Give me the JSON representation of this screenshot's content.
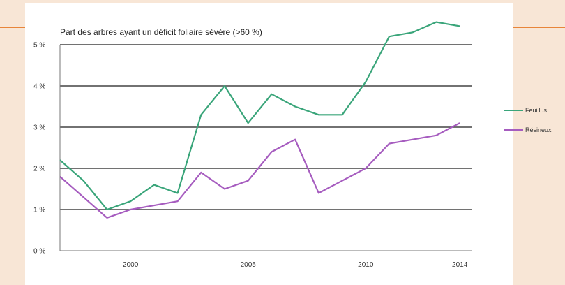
{
  "chart_data": {
    "type": "line",
    "title": "Part des arbres ayant un déficit foliaire sévère (>60 %)",
    "x": [
      1997,
      1998,
      1999,
      2000,
      2001,
      2002,
      2003,
      2004,
      2005,
      2006,
      2007,
      2008,
      2009,
      2010,
      2011,
      2012,
      2013,
      2014
    ],
    "series": [
      {
        "name": "Feuillus",
        "color": "#3aa57a",
        "values": [
          2.2,
          1.7,
          1.0,
          1.2,
          1.6,
          1.4,
          3.3,
          4.0,
          3.1,
          3.8,
          3.5,
          3.3,
          3.3,
          4.1,
          5.2,
          5.3,
          5.55,
          5.45
        ]
      },
      {
        "name": "Résineux",
        "color": "#a65cbf",
        "values": [
          1.8,
          1.3,
          0.8,
          1.0,
          1.1,
          1.2,
          1.9,
          1.5,
          1.7,
          2.4,
          2.7,
          1.4,
          1.7,
          2.0,
          2.6,
          2.7,
          2.8,
          3.1
        ]
      }
    ],
    "xticks": [
      2000,
      2005,
      2010,
      2014
    ],
    "xtick_labels": [
      "2000",
      "2005",
      "2010",
      "2014"
    ],
    "yticks": [
      0,
      1,
      2,
      3,
      4,
      5
    ],
    "ytick_labels": [
      "0 %",
      "1 %",
      "2 %",
      "3 %",
      "4 %",
      "5 %"
    ],
    "xlim": [
      1997,
      2014.5
    ],
    "ylim": [
      0,
      5
    ],
    "grid": "horizontal",
    "legend_position": "right"
  }
}
